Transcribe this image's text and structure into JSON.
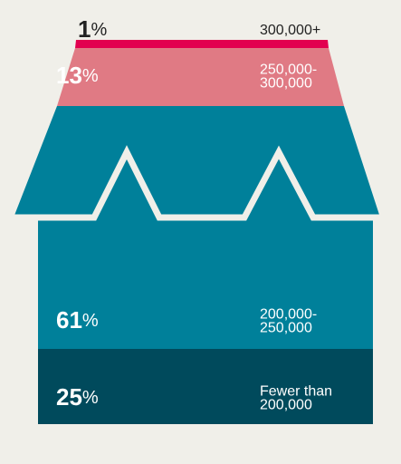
{
  "segments": [
    {
      "value": 1,
      "unit": "%",
      "label": [
        "300,000+"
      ]
    },
    {
      "value": 13,
      "unit": "%",
      "label": [
        "250,000-",
        "300,000"
      ]
    },
    {
      "value": 61,
      "unit": "%",
      "label": [
        "200,000-",
        "250,000"
      ]
    },
    {
      "value": 25,
      "unit": "%",
      "label": [
        "Fewer than",
        "200,000"
      ]
    }
  ]
}
